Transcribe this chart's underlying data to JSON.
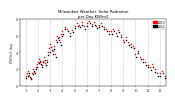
{
  "title": "Milwaukee Weather  Solar Radiation",
  "subtitle": "per Day KW/m2",
  "ylabel_left": "KW/m2 day",
  "background": "#ffffff",
  "plot_bg": "#ffffff",
  "grid_color": "#c8c8c8",
  "red_color": "#ff0000",
  "black_color": "#000000",
  "legend_label_red": "2013",
  "legend_label_black": "2012",
  "x_ticks": [
    1,
    2,
    3,
    4,
    5,
    6,
    7,
    8,
    9,
    10,
    11,
    12
  ],
  "ylim": [
    0,
    8
  ],
  "xlim": [
    0.5,
    12.5
  ],
  "yticks": [
    0,
    2,
    4,
    6,
    8
  ],
  "red_x": [
    1.0,
    1.1,
    1.2,
    1.3,
    1.4,
    1.5,
    1.6,
    1.7,
    1.8,
    1.9,
    2.0,
    2.1,
    2.2,
    2.3,
    2.4,
    2.5,
    2.6,
    2.7,
    2.8,
    2.9,
    3.0,
    3.1,
    3.2,
    3.3,
    3.4,
    3.5,
    3.6,
    3.7,
    3.8,
    3.9,
    4.0,
    4.2,
    4.4,
    4.6,
    4.8,
    5.0,
    5.2,
    5.4,
    5.6,
    5.8,
    6.0,
    6.2,
    6.4,
    6.6,
    6.8,
    7.0,
    7.2,
    7.4,
    7.6,
    7.8,
    8.0,
    8.2,
    8.4,
    8.6,
    8.8,
    9.0,
    9.2,
    9.4,
    9.6,
    9.8,
    10.0,
    10.2,
    10.4,
    10.6,
    10.8,
    11.0,
    11.2,
    11.4,
    11.6,
    11.8,
    12.0,
    12.2,
    12.4,
    12.6,
    12.8
  ],
  "red_y": [
    1.2,
    1.5,
    1.8,
    1.3,
    1.0,
    1.6,
    2.0,
    1.7,
    2.3,
    2.6,
    2.9,
    3.2,
    2.8,
    2.5,
    3.0,
    3.4,
    2.7,
    3.1,
    4.0,
    4.5,
    5.0,
    4.6,
    4.2,
    4.8,
    3.8,
    5.5,
    6.0,
    5.8,
    5.2,
    6.2,
    6.5,
    7.0,
    6.8,
    6.3,
    6.7,
    7.2,
    7.5,
    7.3,
    7.6,
    7.1,
    7.5,
    7.8,
    7.4,
    7.6,
    7.2,
    7.3,
    7.5,
    7.0,
    6.8,
    6.5,
    6.5,
    6.8,
    6.3,
    6.7,
    6.1,
    5.5,
    5.8,
    5.2,
    5.0,
    4.8,
    3.8,
    4.2,
    3.5,
    3.2,
    2.8,
    2.5,
    2.2,
    2.6,
    2.0,
    1.5,
    1.5,
    1.8,
    1.2,
    1.0,
    0.8
  ],
  "black_x": [
    1.05,
    1.15,
    1.25,
    1.35,
    1.45,
    1.55,
    1.65,
    1.75,
    1.85,
    1.95,
    2.05,
    2.15,
    2.25,
    2.35,
    2.45,
    2.55,
    2.65,
    2.75,
    2.85,
    2.95,
    3.05,
    3.15,
    3.25,
    3.35,
    3.45,
    3.55,
    3.65,
    3.75,
    3.85,
    3.95,
    4.05,
    4.25,
    4.45,
    4.65,
    4.85,
    5.05,
    5.25,
    5.45,
    5.65,
    5.85,
    6.05,
    6.25,
    6.45,
    6.65,
    6.85,
    7.05,
    7.25,
    7.45,
    7.65,
    7.85,
    8.05,
    8.25,
    8.45,
    8.65,
    8.85,
    9.05,
    9.25,
    9.45,
    9.65,
    9.85,
    10.05,
    10.25,
    10.45,
    10.65,
    10.85,
    11.05,
    11.25,
    11.45,
    11.65,
    11.85,
    12.05,
    12.25,
    12.45,
    12.65,
    12.85
  ],
  "black_y": [
    0.9,
    1.2,
    1.6,
    1.1,
    0.8,
    1.4,
    1.8,
    1.5,
    2.0,
    2.3,
    2.7,
    3.0,
    2.6,
    2.3,
    2.8,
    3.1,
    2.5,
    2.9,
    3.7,
    4.1,
    4.6,
    4.3,
    3.8,
    4.4,
    3.5,
    5.2,
    5.7,
    5.5,
    4.9,
    5.9,
    6.2,
    6.8,
    6.5,
    6.0,
    6.4,
    6.9,
    7.1,
    7.0,
    7.3,
    6.8,
    7.2,
    7.5,
    7.1,
    7.3,
    6.9,
    7.0,
    7.2,
    6.8,
    6.5,
    6.2,
    6.2,
    6.5,
    6.0,
    6.4,
    5.8,
    5.2,
    5.5,
    4.9,
    4.7,
    4.5,
    3.5,
    3.9,
    3.2,
    2.9,
    2.5,
    2.2,
    1.9,
    2.3,
    1.7,
    1.2,
    1.2,
    1.5,
    0.9,
    0.8,
    0.6
  ]
}
